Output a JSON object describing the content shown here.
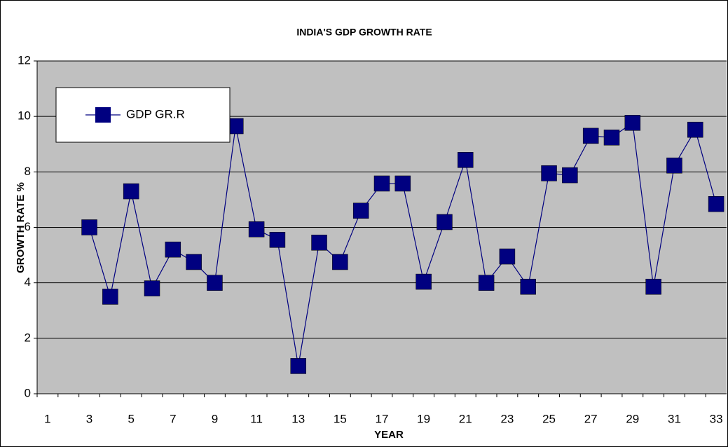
{
  "chart_data": {
    "type": "line",
    "title": "INDIA'S GDP GROWTH RATE",
    "x_label": "YEAR",
    "y_label": "GROWTH RATE %",
    "categories": [
      "1",
      null,
      "3",
      null,
      "5",
      null,
      "7",
      null,
      "9",
      null,
      "11",
      null,
      "13",
      null,
      "15",
      null,
      "17",
      null,
      "19",
      null,
      "21",
      null,
      "23",
      null,
      "25",
      null,
      "27",
      null,
      "29",
      null,
      "31",
      null,
      "33"
    ],
    "series": [
      {
        "name": "GDP GR.R",
        "color": "#000080",
        "values": [
          null,
          null,
          6.0,
          3.5,
          7.3,
          3.8,
          5.2,
          4.75,
          4.0,
          9.65,
          5.93,
          5.55,
          1.0,
          5.45,
          4.75,
          6.6,
          7.58,
          7.58,
          4.04,
          6.19,
          8.43,
          4.0,
          4.95,
          3.86,
          7.95,
          7.88,
          9.3,
          9.24,
          9.77,
          3.86,
          8.23,
          9.52,
          6.84
        ]
      }
    ],
    "ylim": [
      0,
      12
    ],
    "yticks": [
      0,
      2,
      4,
      6,
      8,
      10,
      12
    ],
    "grid": true,
    "legend": "upper left"
  }
}
